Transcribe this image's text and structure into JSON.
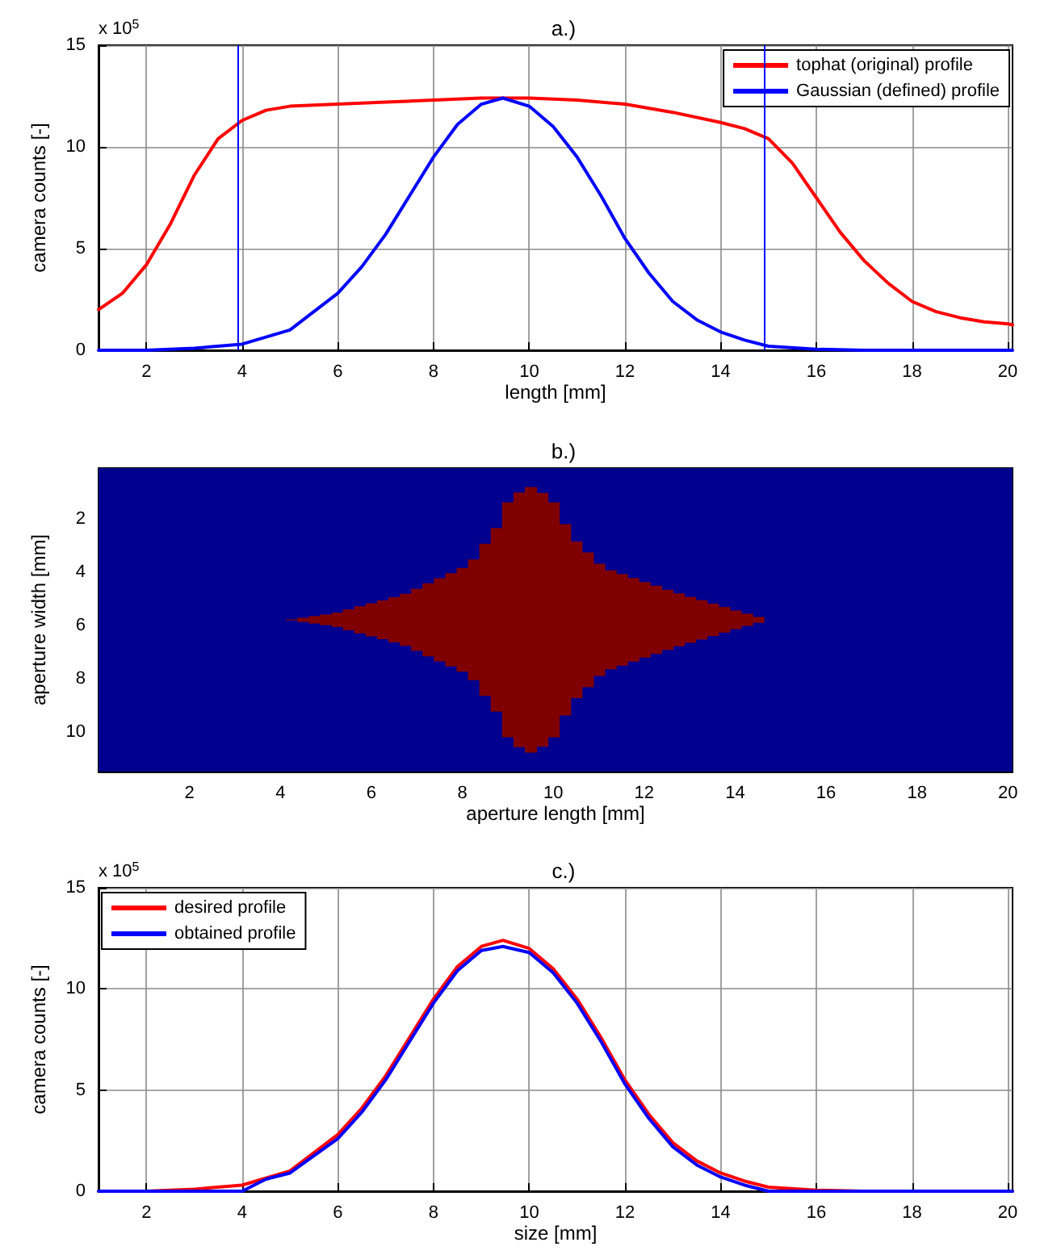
{
  "chart_data": [
    {
      "type": "line",
      "title": "a.)",
      "xlabel": "length [mm]",
      "ylabel": "camera counts [-]",
      "annotations": [
        "x 10$^{5}$"
      ],
      "xlim": [
        1,
        20.1
      ],
      "ylim": [
        0,
        15
      ],
      "xticks": [
        2,
        4,
        6,
        8,
        10,
        12,
        14,
        16,
        18,
        20
      ],
      "yticks": [
        0,
        5,
        10,
        15
      ],
      "grid": true,
      "legend": "top right",
      "line_style": "solid",
      "ref_lines": [
        {
          "axis": "x",
          "value": 3.9,
          "color": "#0000ff"
        },
        {
          "axis": "x",
          "value": 14.9,
          "color": "#0000ff"
        }
      ],
      "series": [
        {
          "name": "tophat (original) profile",
          "color": "#ff0000",
          "x": [
            1,
            1.5,
            2,
            2.5,
            3,
            3.5,
            4,
            4.5,
            5,
            6,
            7,
            8,
            9,
            10,
            11,
            12,
            13,
            14,
            14.5,
            15,
            15.5,
            16,
            16.5,
            17,
            17.5,
            18,
            18.5,
            19,
            19.5,
            20,
            20.1
          ],
          "values": [
            2.0,
            2.8,
            4.2,
            6.2,
            8.6,
            10.4,
            11.3,
            11.8,
            12.0,
            12.1,
            12.2,
            12.3,
            12.4,
            12.4,
            12.3,
            12.1,
            11.7,
            11.2,
            10.9,
            10.4,
            9.2,
            7.5,
            5.8,
            4.4,
            3.3,
            2.4,
            1.9,
            1.6,
            1.4,
            1.3,
            1.25
          ]
        },
        {
          "name": "Gaussian (defined) profile",
          "color": "#0000ff",
          "x": [
            1,
            2,
            3,
            4,
            5,
            6,
            6.5,
            7,
            7.5,
            8,
            8.5,
            9,
            9.45,
            10,
            10.5,
            11,
            11.5,
            12,
            12.5,
            13,
            13.5,
            14,
            14.5,
            15,
            16,
            17,
            18,
            20.1
          ],
          "values": [
            0,
            0,
            0.1,
            0.3,
            1.0,
            2.8,
            4.1,
            5.7,
            7.6,
            9.5,
            11.1,
            12.1,
            12.4,
            12.0,
            11.0,
            9.5,
            7.6,
            5.5,
            3.8,
            2.4,
            1.5,
            0.9,
            0.5,
            0.2,
            0.05,
            0,
            0,
            0
          ]
        }
      ]
    },
    {
      "type": "bar",
      "title": "b.)",
      "xlabel": "aperture length [mm]",
      "ylabel": "aperture width [mm]",
      "xlim": [
        0,
        20.1
      ],
      "ylim": [
        11.5,
        0.1
      ],
      "xticks": [
        2,
        4,
        6,
        8,
        10,
        12,
        14,
        16,
        18,
        20
      ],
      "yticks": [
        2,
        4,
        6,
        8,
        10
      ],
      "bands": [
        {
          "axis": "x",
          "from": 0,
          "to": 20.1,
          "color": "#00008f"
        }
      ],
      "series": [
        {
          "color": "#800000",
          "x": [
            4.25,
            4.5,
            4.75,
            5,
            5.25,
            5.5,
            5.75,
            6,
            6.25,
            6.5,
            6.75,
            7,
            7.25,
            7.5,
            7.75,
            8,
            8.25,
            8.5,
            8.75,
            9,
            9.25,
            9.5,
            9.75,
            10,
            10.25,
            10.5,
            10.75,
            11,
            11.25,
            11.5,
            11.75,
            12,
            12.25,
            12.5,
            12.75,
            13,
            13.25,
            13.5,
            13.75,
            14,
            14.25,
            14.5
          ],
          "base": [
            5.78,
            5.72,
            5.66,
            5.6,
            5.53,
            5.41,
            5.29,
            5.18,
            5.07,
            4.95,
            4.82,
            4.63,
            4.43,
            4.24,
            4.05,
            3.85,
            3.53,
            2.94,
            2.35,
            1.39,
            1.02,
            0.81,
            1.03,
            1.39,
            2.21,
            2.86,
            3.27,
            3.69,
            3.94,
            4.08,
            4.23,
            4.38,
            4.52,
            4.67,
            4.81,
            4.94,
            5.06,
            5.19,
            5.32,
            5.45,
            5.57,
            5.69
          ],
          "values": [
            0.04,
            0.16,
            0.28,
            0.4,
            0.54,
            0.78,
            1.02,
            1.24,
            1.46,
            1.7,
            1.96,
            2.34,
            2.74,
            3.12,
            3.5,
            3.9,
            4.54,
            5.72,
            6.9,
            8.82,
            9.56,
            9.98,
            9.54,
            8.82,
            7.18,
            5.88,
            5.06,
            4.22,
            3.72,
            3.44,
            3.14,
            2.84,
            2.56,
            2.26,
            1.98,
            1.72,
            1.48,
            1.22,
            0.96,
            0.7,
            0.46,
            0.22
          ]
        }
      ]
    },
    {
      "type": "line",
      "title": "c.)",
      "xlabel": "size [mm]",
      "ylabel": "camera counts [-]",
      "annotations": [
        "x 10$^{5}$"
      ],
      "xlim": [
        1,
        20.1
      ],
      "ylim": [
        0,
        15
      ],
      "xticks": [
        2,
        4,
        6,
        8,
        10,
        12,
        14,
        16,
        18,
        20
      ],
      "yticks": [
        0,
        5,
        10,
        15
      ],
      "grid": true,
      "legend": "top left",
      "line_style": "solid",
      "series": [
        {
          "name": "desired profile",
          "color": "#ff0000",
          "x": [
            1,
            2,
            3,
            4,
            5,
            6,
            6.5,
            7,
            7.5,
            8,
            8.5,
            9,
            9.45,
            10,
            10.5,
            11,
            11.5,
            12,
            12.5,
            13,
            13.5,
            14,
            14.5,
            15,
            16,
            17,
            18,
            20.1
          ],
          "values": [
            0,
            0,
            0.1,
            0.3,
            1.0,
            2.8,
            4.1,
            5.7,
            7.6,
            9.5,
            11.1,
            12.1,
            12.4,
            12.0,
            11.0,
            9.5,
            7.6,
            5.5,
            3.8,
            2.4,
            1.5,
            0.9,
            0.5,
            0.2,
            0.05,
            0,
            0,
            0
          ]
        },
        {
          "name": "obtained profile",
          "color": "#0000ff",
          "x": [
            1,
            2,
            3,
            4,
            4.5,
            5,
            6,
            6.5,
            7,
            7.5,
            8,
            8.5,
            9,
            9.45,
            10,
            10.5,
            11,
            11.5,
            12,
            12.5,
            13,
            13.5,
            14,
            14.5,
            15,
            16,
            18,
            20.1
          ],
          "values": [
            0,
            0,
            0,
            0,
            0.6,
            0.9,
            2.6,
            3.9,
            5.5,
            7.4,
            9.3,
            10.9,
            11.9,
            12.1,
            11.8,
            10.8,
            9.3,
            7.4,
            5.3,
            3.6,
            2.2,
            1.3,
            0.7,
            0.3,
            0,
            0,
            0,
            0
          ]
        }
      ]
    }
  ]
}
